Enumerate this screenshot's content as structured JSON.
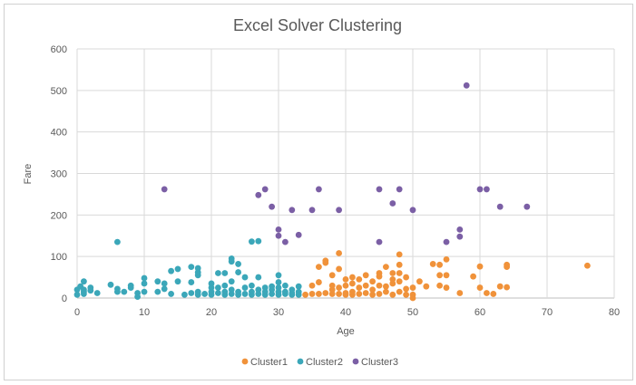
{
  "chart_data": {
    "type": "scatter",
    "title": "Excel Solver Clustering",
    "xlabel": "Age",
    "ylabel": "Fare",
    "xlim": [
      0,
      80
    ],
    "ylim": [
      0,
      600
    ],
    "x_ticks": [
      "0",
      "10",
      "20",
      "30",
      "40",
      "50",
      "60",
      "70",
      "80"
    ],
    "y_ticks": [
      "0",
      "100",
      "200",
      "300",
      "400",
      "500",
      "600"
    ],
    "grid": true,
    "legend_position": "bottom",
    "series": [
      {
        "name": "Cluster1",
        "color": "#F0923A",
        "points": [
          [
            34,
            8
          ],
          [
            35,
            10
          ],
          [
            35,
            30
          ],
          [
            36,
            10
          ],
          [
            36,
            38
          ],
          [
            36,
            75
          ],
          [
            37,
            85
          ],
          [
            37,
            90
          ],
          [
            37,
            12
          ],
          [
            38,
            10
          ],
          [
            38,
            20
          ],
          [
            38,
            55
          ],
          [
            38,
            30
          ],
          [
            39,
            108
          ],
          [
            39,
            70
          ],
          [
            39,
            10
          ],
          [
            39,
            25
          ],
          [
            40,
            12
          ],
          [
            40,
            30
          ],
          [
            40,
            45
          ],
          [
            40,
            8
          ],
          [
            41,
            15
          ],
          [
            41,
            50
          ],
          [
            41,
            35
          ],
          [
            41,
            8
          ],
          [
            42,
            10
          ],
          [
            42,
            25
          ],
          [
            42,
            45
          ],
          [
            43,
            12
          ],
          [
            43,
            30
          ],
          [
            43,
            55
          ],
          [
            44,
            8
          ],
          [
            44,
            20
          ],
          [
            44,
            40
          ],
          [
            45,
            10
          ],
          [
            45,
            30
          ],
          [
            45,
            60
          ],
          [
            45,
            52
          ],
          [
            46,
            15
          ],
          [
            46,
            75
          ],
          [
            46,
            28
          ],
          [
            47,
            8
          ],
          [
            47,
            60
          ],
          [
            47,
            45
          ],
          [
            47,
            35
          ],
          [
            48,
            15
          ],
          [
            48,
            80
          ],
          [
            48,
            105
          ],
          [
            48,
            40
          ],
          [
            48,
            60
          ],
          [
            49,
            8
          ],
          [
            49,
            22
          ],
          [
            49,
            50
          ],
          [
            50,
            8
          ],
          [
            50,
            25
          ],
          [
            51,
            40
          ],
          [
            52,
            28
          ],
          [
            53,
            82
          ],
          [
            54,
            80
          ],
          [
            54,
            55
          ],
          [
            54,
            30
          ],
          [
            55,
            93
          ],
          [
            55,
            55
          ],
          [
            55,
            25
          ],
          [
            57,
            12
          ],
          [
            59,
            52
          ],
          [
            60,
            25
          ],
          [
            60,
            76
          ],
          [
            61,
            12
          ],
          [
            62,
            10
          ],
          [
            63,
            28
          ],
          [
            64,
            80
          ],
          [
            64,
            75
          ],
          [
            64,
            26
          ],
          [
            76,
            78
          ],
          [
            50,
            0
          ]
        ]
      },
      {
        "name": "Cluster2",
        "color": "#3BA7B9",
        "points": [
          [
            0,
            20
          ],
          [
            0,
            8
          ],
          [
            0.5,
            28
          ],
          [
            1,
            40
          ],
          [
            1,
            15
          ],
          [
            1,
            10
          ],
          [
            1,
            20
          ],
          [
            2,
            25
          ],
          [
            2,
            18
          ],
          [
            3,
            12
          ],
          [
            5,
            32
          ],
          [
            6,
            22
          ],
          [
            6,
            15
          ],
          [
            6,
            135
          ],
          [
            7,
            15
          ],
          [
            8,
            30
          ],
          [
            8,
            25
          ],
          [
            9,
            12
          ],
          [
            9,
            3
          ],
          [
            10,
            35
          ],
          [
            10,
            48
          ],
          [
            10,
            15
          ],
          [
            12,
            40
          ],
          [
            12,
            15
          ],
          [
            13,
            35
          ],
          [
            13,
            22
          ],
          [
            14,
            65
          ],
          [
            14,
            10
          ],
          [
            15,
            70
          ],
          [
            15,
            40
          ],
          [
            16,
            8
          ],
          [
            17,
            12
          ],
          [
            17,
            38
          ],
          [
            17,
            75
          ],
          [
            18,
            8
          ],
          [
            18,
            55
          ],
          [
            18,
            62
          ],
          [
            18,
            72
          ],
          [
            18,
            15
          ],
          [
            19,
            10
          ],
          [
            20,
            8
          ],
          [
            20,
            15
          ],
          [
            20,
            25
          ],
          [
            20,
            35
          ],
          [
            21,
            12
          ],
          [
            21,
            60
          ],
          [
            21,
            25
          ],
          [
            22,
            8
          ],
          [
            22,
            15
          ],
          [
            22,
            60
          ],
          [
            22,
            30
          ],
          [
            23,
            10
          ],
          [
            23,
            20
          ],
          [
            23,
            40
          ],
          [
            23,
            88
          ],
          [
            23,
            95
          ],
          [
            24,
            15
          ],
          [
            24,
            82
          ],
          [
            24,
            62
          ],
          [
            24,
            8
          ],
          [
            25,
            10
          ],
          [
            25,
            25
          ],
          [
            25,
            50
          ],
          [
            26,
            8
          ],
          [
            26,
            30
          ],
          [
            26,
            15
          ],
          [
            26,
            136
          ],
          [
            27,
            10
          ],
          [
            27,
            50
          ],
          [
            27,
            20
          ],
          [
            27,
            137
          ],
          [
            28,
            8
          ],
          [
            28,
            25
          ],
          [
            28,
            15
          ],
          [
            29,
            10
          ],
          [
            29,
            28
          ],
          [
            29,
            20
          ],
          [
            30,
            8
          ],
          [
            30,
            15
          ],
          [
            30,
            25
          ],
          [
            30,
            55
          ],
          [
            30,
            38
          ],
          [
            31,
            10
          ],
          [
            31,
            30
          ],
          [
            31,
            15
          ],
          [
            32,
            8
          ],
          [
            32,
            20
          ],
          [
            32,
            12
          ],
          [
            33,
            28
          ],
          [
            33,
            15
          ],
          [
            33,
            8
          ]
        ]
      },
      {
        "name": "Cluster3",
        "color": "#7B5FA5",
        "points": [
          [
            13,
            262
          ],
          [
            27,
            248
          ],
          [
            28,
            262
          ],
          [
            29,
            220
          ],
          [
            30,
            165
          ],
          [
            30,
            150
          ],
          [
            31,
            135
          ],
          [
            32,
            212
          ],
          [
            33,
            152
          ],
          [
            35,
            212
          ],
          [
            36,
            262
          ],
          [
            39,
            212
          ],
          [
            45,
            262
          ],
          [
            45,
            135
          ],
          [
            47,
            228
          ],
          [
            48,
            262
          ],
          [
            50,
            212
          ],
          [
            55,
            135
          ],
          [
            57,
            165
          ],
          [
            57,
            148
          ],
          [
            58,
            512
          ],
          [
            60,
            262
          ],
          [
            61,
            262
          ],
          [
            63,
            220
          ],
          [
            67,
            220
          ]
        ]
      }
    ]
  }
}
